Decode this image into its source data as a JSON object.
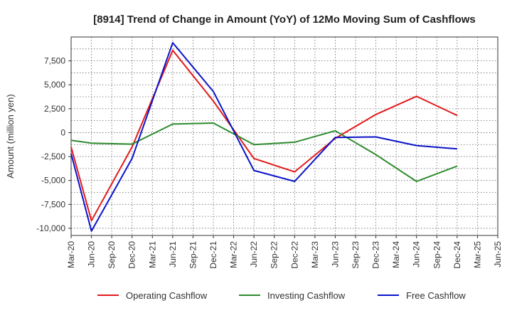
{
  "chart_data": {
    "type": "line",
    "title": "[8914]  Trend of Change in Amount (YoY) of 12Mo Moving Sum of Cashflows",
    "xlabel": "",
    "ylabel": "Amount (million yen)",
    "categories": [
      "Mar-20",
      "Jun-20",
      "Sep-20",
      "Dec-20",
      "Mar-21",
      "Jun-21",
      "Sep-21",
      "Dec-21",
      "Mar-22",
      "Jun-22",
      "Sep-22",
      "Dec-22",
      "Mar-23",
      "Jun-23",
      "Sep-23",
      "Dec-23",
      "Mar-24",
      "Jun-24",
      "Sep-24",
      "Dec-24",
      "Mar-25",
      "Jun-25"
    ],
    "ylim": [
      -10750,
      10000
    ],
    "yticks": [
      -10000,
      -7500,
      -5000,
      -2500,
      0,
      2500,
      5000,
      7500
    ],
    "ytick_labels": [
      "-10,000",
      "-7,500",
      "-5,000",
      "-2,500",
      "0",
      "2,500",
      "5,000",
      "7,500"
    ],
    "grid": true,
    "legend_position": "bottom",
    "series": [
      {
        "name": "Operating Cashflow",
        "color": "#e31a1c",
        "values": [
          -1500,
          -9200,
          null,
          -1500,
          null,
          8600,
          null,
          3300,
          null,
          -2700,
          null,
          -4100,
          null,
          -600,
          null,
          1900,
          null,
          3800,
          null,
          1800,
          null,
          null
        ]
      },
      {
        "name": "Investing Cashflow",
        "color": "#2e8b2e",
        "values": [
          -800,
          -1100,
          null,
          -1200,
          null,
          900,
          null,
          1000,
          null,
          -1250,
          null,
          -1000,
          null,
          200,
          null,
          -2300,
          null,
          -5100,
          null,
          -3500,
          null,
          null
        ]
      },
      {
        "name": "Free Cashflow",
        "color": "#0a14c8",
        "values": [
          -2200,
          -10300,
          null,
          -2700,
          null,
          9400,
          null,
          4300,
          null,
          -3950,
          null,
          -5100,
          null,
          -500,
          null,
          -450,
          null,
          -1350,
          null,
          -1700,
          null,
          null
        ]
      }
    ]
  }
}
